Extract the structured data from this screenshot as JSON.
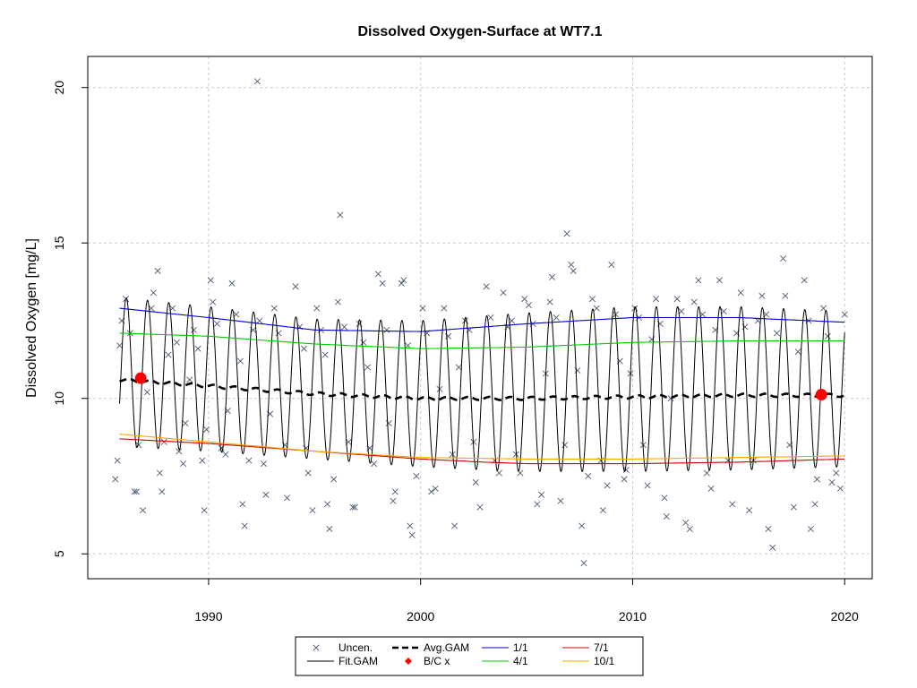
{
  "chart_data": {
    "type": "scatter",
    "title": "Dissolved Oxygen-Surface at WT7.1",
    "xlabel": "",
    "ylabel": "Dissolved Oxygen [mg/L]",
    "xlim": [
      1984.3,
      2021.3
    ],
    "ylim": [
      4.2,
      21.0
    ],
    "x_ticks": [
      1990,
      2000,
      2010,
      2020
    ],
    "y_ticks": [
      5,
      10,
      15,
      20
    ],
    "grid": true,
    "legend_position": "bottom-center",
    "legend": [
      {
        "label": "Uncen.",
        "marker": "x",
        "color": "#4a5a78"
      },
      {
        "label": "Fit.GAM",
        "line": "solid",
        "color": "#000000"
      },
      {
        "label": "Avg.GAM",
        "line": "dashed",
        "color": "#000000"
      },
      {
        "label": "B/C x",
        "marker": "diamond",
        "color": "#ff0000"
      },
      {
        "label": "1/1",
        "line": "solid",
        "color": "#0000cc"
      },
      {
        "label": "4/1",
        "line": "solid",
        "color": "#00cc00"
      },
      {
        "label": "7/1",
        "line": "solid",
        "color": "#cc0000"
      },
      {
        "label": "10/1",
        "line": "solid",
        "color": "#ffa500"
      }
    ],
    "fit_gam": {
      "start": 1985.8,
      "end": 2020.0,
      "period_years": 1.0,
      "peak_fraction": 0.12
    },
    "seasonal_lines": [
      {
        "name": "1/1",
        "color": "#0000cc",
        "x": [
          1985.8,
          1990,
          1995,
          2000,
          2005,
          2010,
          2015,
          2020
        ],
        "y": [
          12.9,
          12.6,
          12.2,
          12.15,
          12.4,
          12.6,
          12.6,
          12.45
        ]
      },
      {
        "name": "4/1",
        "color": "#00cc00",
        "x": [
          1985.8,
          1990,
          1995,
          2000,
          2005,
          2010,
          2015,
          2020
        ],
        "y": [
          12.1,
          12.0,
          11.75,
          11.6,
          11.65,
          11.8,
          11.85,
          11.85
        ]
      },
      {
        "name": "7/1",
        "color": "#cc0000",
        "x": [
          1985.8,
          1990,
          1995,
          2000,
          2003,
          2005,
          2010,
          2015,
          2020
        ],
        "y": [
          8.7,
          8.55,
          8.3,
          8.05,
          7.95,
          7.9,
          7.9,
          7.95,
          8.05
        ]
      },
      {
        "name": "10/1",
        "color": "#ffa500",
        "x": [
          1985.8,
          1990,
          1995,
          2000,
          2005,
          2010,
          2015,
          2020
        ],
        "y": [
          8.85,
          8.6,
          8.3,
          8.1,
          8.05,
          8.05,
          8.1,
          8.15
        ]
      }
    ],
    "avg_gam": {
      "x": [
        1985.8,
        1990,
        1995,
        2000,
        2005,
        2010,
        2015,
        2020
      ],
      "y": [
        10.6,
        10.4,
        10.15,
        10.0,
        10.0,
        10.05,
        10.1,
        10.1
      ]
    },
    "bc_points": [
      {
        "x": 1986.8,
        "y": 10.65
      },
      {
        "x": 2018.9,
        "y": 10.12
      }
    ],
    "uncensored": [
      [
        1985.6,
        7.4
      ],
      [
        1985.7,
        8.0
      ],
      [
        1985.8,
        11.7
      ],
      [
        1985.9,
        12.5
      ],
      [
        1986.1,
        13.2
      ],
      [
        1986.3,
        12.1
      ],
      [
        1986.5,
        7.0
      ],
      [
        1986.6,
        7.0
      ],
      [
        1986.7,
        8.5
      ],
      [
        1986.9,
        6.4
      ],
      [
        1987.1,
        10.2
      ],
      [
        1987.3,
        12.9
      ],
      [
        1987.4,
        13.4
      ],
      [
        1987.6,
        14.1
      ],
      [
        1987.7,
        7.6
      ],
      [
        1987.8,
        7.0
      ],
      [
        1987.9,
        8.6
      ],
      [
        1988.1,
        11.4
      ],
      [
        1988.3,
        12.9
      ],
      [
        1988.5,
        11.8
      ],
      [
        1988.6,
        8.3
      ],
      [
        1988.8,
        7.9
      ],
      [
        1988.9,
        9.2
      ],
      [
        1989.1,
        10.6
      ],
      [
        1989.3,
        12.2
      ],
      [
        1989.5,
        11.6
      ],
      [
        1989.7,
        8.0
      ],
      [
        1989.8,
        6.4
      ],
      [
        1989.9,
        9.0
      ],
      [
        1990.1,
        13.8
      ],
      [
        1990.2,
        13.1
      ],
      [
        1990.4,
        12.4
      ],
      [
        1990.6,
        8.4
      ],
      [
        1990.8,
        8.2
      ],
      [
        1990.9,
        9.6
      ],
      [
        1991.1,
        13.7
      ],
      [
        1991.3,
        12.7
      ],
      [
        1991.5,
        11.2
      ],
      [
        1991.6,
        6.6
      ],
      [
        1991.7,
        5.9
      ],
      [
        1991.9,
        8.0
      ],
      [
        1992.1,
        12.2
      ],
      [
        1992.3,
        20.2
      ],
      [
        1992.4,
        12.5
      ],
      [
        1992.6,
        7.9
      ],
      [
        1992.7,
        6.9
      ],
      [
        1992.9,
        9.5
      ],
      [
        1993.1,
        12.9
      ],
      [
        1993.3,
        12.1
      ],
      [
        1993.6,
        8.5
      ],
      [
        1993.7,
        6.8
      ],
      [
        1994.1,
        13.6
      ],
      [
        1994.3,
        12.3
      ],
      [
        1994.5,
        11.6
      ],
      [
        1994.6,
        8.4
      ],
      [
        1994.7,
        7.6
      ],
      [
        1994.9,
        6.4
      ],
      [
        1995.1,
        12.9
      ],
      [
        1995.3,
        12.2
      ],
      [
        1995.5,
        11.4
      ],
      [
        1995.6,
        6.6
      ],
      [
        1995.7,
        5.8
      ],
      [
        1995.9,
        7.4
      ],
      [
        1996.1,
        13.1
      ],
      [
        1996.2,
        15.9
      ],
      [
        1996.4,
        12.3
      ],
      [
        1996.6,
        8.6
      ],
      [
        1996.8,
        6.5
      ],
      [
        1996.9,
        6.5
      ],
      [
        1997.1,
        12.4
      ],
      [
        1997.3,
        11.8
      ],
      [
        1997.5,
        11.0
      ],
      [
        1997.6,
        8.4
      ],
      [
        1997.8,
        7.9
      ],
      [
        1998.0,
        14.0
      ],
      [
        1998.2,
        13.7
      ],
      [
        1998.4,
        12.2
      ],
      [
        1998.5,
        9.2
      ],
      [
        1998.7,
        6.7
      ],
      [
        1998.8,
        7.0
      ],
      [
        1999.1,
        13.7
      ],
      [
        1999.2,
        13.8
      ],
      [
        1999.4,
        11.7
      ],
      [
        1999.5,
        5.9
      ],
      [
        1999.6,
        5.6
      ],
      [
        1999.8,
        7.5
      ],
      [
        2000.1,
        12.9
      ],
      [
        2000.3,
        12.1
      ],
      [
        2000.5,
        7.0
      ],
      [
        2000.7,
        7.1
      ],
      [
        2000.9,
        10.3
      ],
      [
        2001.1,
        12.9
      ],
      [
        2001.3,
        12.0
      ],
      [
        2001.5,
        8.2
      ],
      [
        2001.6,
        5.9
      ],
      [
        2001.8,
        11.0
      ],
      [
        2002.1,
        12.5
      ],
      [
        2002.3,
        12.2
      ],
      [
        2002.5,
        8.6
      ],
      [
        2002.6,
        7.3
      ],
      [
        2002.8,
        6.5
      ],
      [
        2003.1,
        13.6
      ],
      [
        2003.3,
        12.6
      ],
      [
        2003.5,
        8.0
      ],
      [
        2003.7,
        7.6
      ],
      [
        2003.9,
        13.4
      ],
      [
        2004.1,
        12.3
      ],
      [
        2004.3,
        12.5
      ],
      [
        2004.5,
        8.2
      ],
      [
        2004.7,
        7.6
      ],
      [
        2004.9,
        13.2
      ],
      [
        2005.1,
        13.0
      ],
      [
        2005.3,
        12.4
      ],
      [
        2005.5,
        6.6
      ],
      [
        2005.7,
        6.9
      ],
      [
        2005.9,
        10.8
      ],
      [
        2006.1,
        13.1
      ],
      [
        2006.2,
        13.9
      ],
      [
        2006.4,
        12.6
      ],
      [
        2006.6,
        6.7
      ],
      [
        2006.8,
        8.5
      ],
      [
        2006.9,
        15.3
      ],
      [
        2007.1,
        14.3
      ],
      [
        2007.2,
        14.1
      ],
      [
        2007.4,
        10.9
      ],
      [
        2007.6,
        5.9
      ],
      [
        2007.7,
        4.7
      ],
      [
        2007.9,
        7.5
      ],
      [
        2008.1,
        13.2
      ],
      [
        2008.3,
        12.9
      ],
      [
        2008.5,
        8.0
      ],
      [
        2008.6,
        6.4
      ],
      [
        2008.8,
        7.2
      ],
      [
        2009.0,
        14.3
      ],
      [
        2009.2,
        12.7
      ],
      [
        2009.4,
        11.2
      ],
      [
        2009.6,
        7.4
      ],
      [
        2009.7,
        7.7
      ],
      [
        2009.9,
        10.8
      ],
      [
        2010.1,
        12.9
      ],
      [
        2010.3,
        12.6
      ],
      [
        2010.5,
        8.5
      ],
      [
        2010.7,
        7.2
      ],
      [
        2010.9,
        11.9
      ],
      [
        2011.1,
        13.2
      ],
      [
        2011.3,
        12.4
      ],
      [
        2011.5,
        6.8
      ],
      [
        2011.6,
        6.2
      ],
      [
        2011.8,
        10.0
      ],
      [
        2012.1,
        13.2
      ],
      [
        2012.3,
        12.8
      ],
      [
        2012.5,
        6.0
      ],
      [
        2012.7,
        5.8
      ],
      [
        2012.9,
        13.1
      ],
      [
        2013.1,
        13.8
      ],
      [
        2013.3,
        12.7
      ],
      [
        2013.5,
        7.6
      ],
      [
        2013.7,
        7.1
      ],
      [
        2013.9,
        12.2
      ],
      [
        2014.1,
        13.8
      ],
      [
        2014.3,
        12.8
      ],
      [
        2014.5,
        8.0
      ],
      [
        2014.7,
        6.6
      ],
      [
        2014.9,
        12.1
      ],
      [
        2015.1,
        13.4
      ],
      [
        2015.3,
        12.3
      ],
      [
        2015.5,
        6.4
      ],
      [
        2015.7,
        8.0
      ],
      [
        2015.9,
        12.5
      ],
      [
        2016.1,
        13.3
      ],
      [
        2016.3,
        12.7
      ],
      [
        2016.4,
        5.8
      ],
      [
        2016.6,
        5.2
      ],
      [
        2016.8,
        12.1
      ],
      [
        2017.1,
        14.5
      ],
      [
        2017.2,
        13.3
      ],
      [
        2017.4,
        8.5
      ],
      [
        2017.6,
        6.5
      ],
      [
        2017.8,
        11.5
      ],
      [
        2018.1,
        13.8
      ],
      [
        2018.3,
        12.5
      ],
      [
        2018.4,
        5.8
      ],
      [
        2018.6,
        6.6
      ],
      [
        2018.7,
        7.4
      ],
      [
        2019.0,
        12.9
      ],
      [
        2019.2,
        12.0
      ],
      [
        2019.4,
        7.3
      ],
      [
        2019.6,
        7.6
      ],
      [
        2019.8,
        7.1
      ],
      [
        2020.0,
        12.7
      ]
    ]
  }
}
